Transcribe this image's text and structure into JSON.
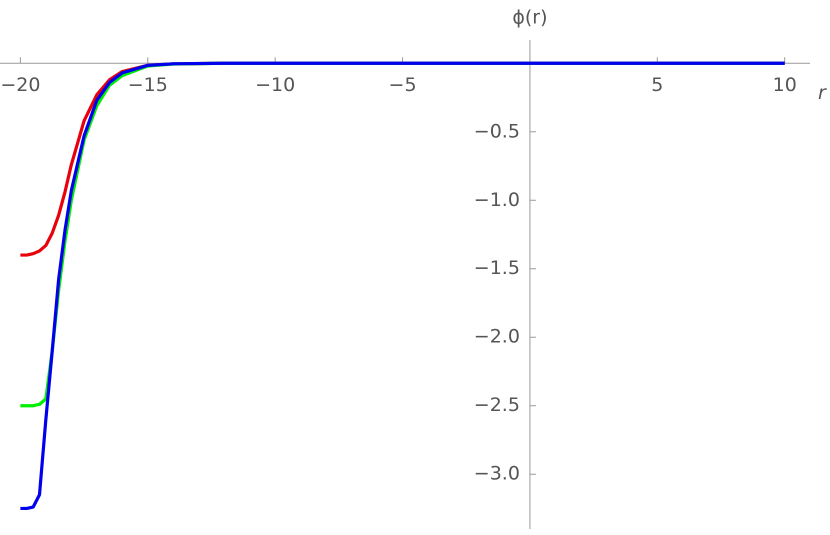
{
  "chart_data": {
    "type": "line",
    "x_label": "r",
    "y_label": "ϕ(r)",
    "x": [
      -20,
      -19.75,
      -19.5,
      -19.25,
      -19,
      -18.75,
      -18.5,
      -18.25,
      -18,
      -17.5,
      -17,
      -16.5,
      -16,
      -15,
      -14,
      -12,
      -10,
      0,
      10
    ],
    "series": [
      {
        "name": "red",
        "color": "#e8000b",
        "values": [
          -1.4,
          -1.4,
          -1.39,
          -1.37,
          -1.33,
          -1.24,
          -1.11,
          -0.94,
          -0.74,
          -0.42,
          -0.23,
          -0.12,
          -0.06,
          -0.015,
          -0.004,
          0,
          0,
          0,
          0
        ]
      },
      {
        "name": "green",
        "color": "#00ee00",
        "values": [
          -2.5,
          -2.5,
          -2.5,
          -2.49,
          -2.45,
          -2.1,
          -1.66,
          -1.3,
          -1.0,
          -0.56,
          -0.31,
          -0.16,
          -0.09,
          -0.02,
          -0.005,
          0,
          0,
          0,
          0
        ]
      },
      {
        "name": "blue",
        "color": "#0000ee",
        "values": [
          -3.25,
          -3.25,
          -3.24,
          -3.15,
          -2.6,
          -2.1,
          -1.58,
          -1.22,
          -0.93,
          -0.53,
          -0.27,
          -0.14,
          -0.07,
          -0.015,
          -0.004,
          0,
          0,
          0,
          0
        ]
      }
    ],
    "xlim": [
      -20.8,
      10.6
    ],
    "ylim": [
      -3.4,
      0.17
    ],
    "xticks": [
      {
        "value": -20,
        "label": "−20"
      },
      {
        "value": -15,
        "label": "−15"
      },
      {
        "value": -10,
        "label": "−10"
      },
      {
        "value": -5,
        "label": "−5"
      },
      5,
      10
    ],
    "yticks": [
      {
        "value": -0.5,
        "label": "−0.5"
      },
      {
        "value": -1.0,
        "label": "−1.0"
      },
      {
        "value": -1.5,
        "label": "−1.5"
      },
      {
        "value": -2.0,
        "label": "−2.0"
      },
      {
        "value": -2.5,
        "label": "−2.5"
      },
      {
        "value": -3.0,
        "label": "−3.0"
      }
    ]
  }
}
